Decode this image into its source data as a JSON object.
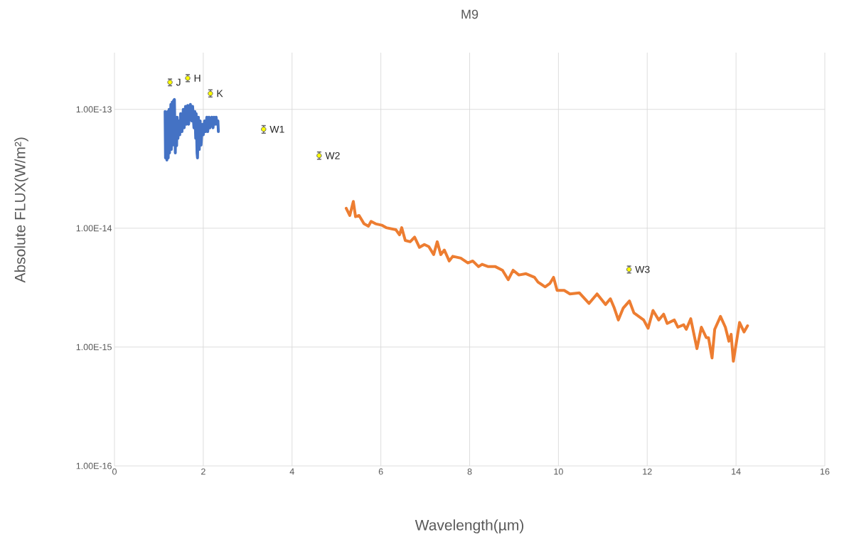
{
  "chart_data": {
    "type": "line",
    "title": "M9",
    "xlabel": "Wavelength(µm)",
    "ylabel": "Absolute FLUX(W/m²)",
    "log": "y",
    "grid": true,
    "xlim": [
      0,
      16
    ],
    "xticks": [
      0,
      2,
      4,
      6,
      8,
      10,
      12,
      14,
      16
    ],
    "ylim": [
      1e-16,
      3e-13
    ],
    "yticks": [
      {
        "value": 1e-16,
        "label": "1.00E-16"
      },
      {
        "value": 1e-15,
        "label": "1.00E-15"
      },
      {
        "value": 1e-14,
        "label": "1.00E-14"
      },
      {
        "value": 1e-13,
        "label": "1.00E-13"
      }
    ],
    "series": [
      {
        "color": "#4472c4",
        "x": [
          1.14,
          1.15,
          1.17,
          1.18,
          1.2,
          1.21,
          1.23,
          1.24,
          1.27,
          1.28,
          1.3,
          1.31,
          1.33,
          1.35,
          1.37,
          1.38,
          1.4,
          1.41,
          1.43,
          1.44,
          1.47,
          1.49,
          1.52,
          1.55,
          1.57,
          1.6,
          1.62,
          1.65,
          1.67,
          1.71,
          1.74,
          1.76,
          1.79,
          1.81,
          1.83,
          1.84,
          1.86,
          1.87,
          1.89,
          1.91,
          1.93,
          1.95,
          1.98,
          2.0,
          2.03,
          2.05,
          2.08,
          2.1,
          2.13,
          2.15,
          2.19,
          2.22,
          2.24,
          2.27,
          2.29,
          2.31,
          2.33,
          2.34
        ],
        "values": [
          9.6e-14,
          3.9e-14,
          9.2e-14,
          3.75e-14,
          9.6e-14,
          3.9e-14,
          1e-13,
          4.3e-14,
          1.1e-13,
          4.6e-14,
          1.15e-13,
          5e-14,
          1.18e-13,
          1.21e-13,
          4.3e-14,
          8e-14,
          4.95e-14,
          8.6e-14,
          5.7e-14,
          8e-14,
          6.1e-14,
          9.2e-14,
          6.5e-14,
          1e-13,
          7e-14,
          1.06e-13,
          7.5e-14,
          1.08e-13,
          7.5e-14,
          1.1e-13,
          8e-14,
          1.06e-13,
          7e-14,
          9.6e-14,
          5.7e-14,
          9.2e-14,
          4.3e-14,
          3.9e-14,
          8.6e-14,
          4.6e-14,
          8e-14,
          5e-14,
          7.5e-14,
          6.1e-14,
          8e-14,
          6.5e-14,
          8.6e-14,
          6.5e-14,
          8.6e-14,
          7e-14,
          8.6e-14,
          7e-14,
          8.6e-14,
          7.5e-14,
          8.6e-14,
          7.5e-14,
          8e-14,
          6.5e-14
        ]
      },
      {
        "color": "#ed7d31",
        "x": [
          5.22,
          5.3,
          5.38,
          5.43,
          5.51,
          5.62,
          5.72,
          5.78,
          5.88,
          6.02,
          6.12,
          6.34,
          6.42,
          6.47,
          6.55,
          6.66,
          6.76,
          6.87,
          6.98,
          7.08,
          7.19,
          7.27,
          7.35,
          7.43,
          7.54,
          7.62,
          7.8,
          7.96,
          8.07,
          8.2,
          8.28,
          8.42,
          8.58,
          8.74,
          8.87,
          8.98,
          9.11,
          9.27,
          9.46,
          9.54,
          9.7,
          9.81,
          9.89,
          9.97,
          10.13,
          10.26,
          10.47,
          10.69,
          10.87,
          11.06,
          11.17,
          11.25,
          11.35,
          11.46,
          11.6,
          11.7,
          11.92,
          12.02,
          12.13,
          12.26,
          12.37,
          12.45,
          12.61,
          12.69,
          12.82,
          12.88,
          12.98,
          13.12,
          13.22,
          13.33,
          13.38,
          13.46,
          13.52,
          13.65,
          13.76,
          13.84,
          13.89,
          13.94,
          14.08,
          14.18,
          14.26
        ],
        "values": [
          1.47e-14,
          1.28e-14,
          1.68e-14,
          1.25e-14,
          1.28e-14,
          1.09e-14,
          1.04e-14,
          1.14e-14,
          1.09e-14,
          1.06e-14,
          1.01e-14,
          9.7e-15,
          8.8e-15,
          1.01e-14,
          7.9e-15,
          7.7e-15,
          8.4e-15,
          6.9e-15,
          7.3e-15,
          7e-15,
          6e-15,
          7.7e-15,
          6e-15,
          6.55e-15,
          5.3e-15,
          5.8e-15,
          5.6e-15,
          5.1e-15,
          5.3e-15,
          4.75e-15,
          4.97e-15,
          4.75e-15,
          4.75e-15,
          4.43e-15,
          3.69e-15,
          4.43e-15,
          4.04e-15,
          4.14e-15,
          3.86e-15,
          3.52e-15,
          3.21e-15,
          3.44e-15,
          3.86e-15,
          3e-15,
          3e-15,
          2.8e-15,
          2.86e-15,
          2.33e-15,
          2.8e-15,
          2.28e-15,
          2.55e-15,
          2.17e-15,
          1.69e-15,
          2.13e-15,
          2.44e-15,
          1.94e-15,
          1.69e-15,
          1.44e-15,
          2.03e-15,
          1.69e-15,
          1.89e-15,
          1.58e-15,
          1.69e-15,
          1.47e-15,
          1.54e-15,
          1.41e-15,
          1.73e-15,
          9.7e-16,
          1.47e-15,
          1.2e-15,
          1.2e-15,
          8.1e-16,
          1.41e-15,
          1.81e-15,
          1.47e-15,
          1.12e-15,
          1.28e-15,
          7.6e-16,
          1.61e-15,
          1.34e-15,
          1.51e-15
        ]
      },
      {
        "type": "scatter",
        "color": "#ffff00",
        "x": [
          1.25,
          1.65,
          2.16,
          3.36,
          4.61,
          11.59
        ],
        "values": [
          1.69e-13,
          1.83e-13,
          1.36e-13,
          6.8e-14,
          4.08e-14,
          4.5e-15
        ],
        "errors": [
          [
            1.58e-13,
            1.8e-13
          ],
          [
            1.71e-13,
            1.96e-13
          ],
          [
            1.27e-13,
            1.46e-13
          ],
          [
            6.3e-14,
            7.3e-14
          ],
          [
            3.8e-14,
            4.38e-14
          ],
          [
            4.2e-15,
            4.8e-15
          ]
        ]
      }
    ],
    "annotations": [
      {
        "text": "J",
        "x": 1.25,
        "y": 1.69e-13
      },
      {
        "text": "H",
        "x": 1.65,
        "y": 1.83e-13
      },
      {
        "text": "K",
        "x": 2.16,
        "y": 1.36e-13
      },
      {
        "text": "W1",
        "x": 3.36,
        "y": 6.8e-14
      },
      {
        "text": "W2",
        "x": 4.61,
        "y": 4.08e-14
      },
      {
        "text": "W3",
        "x": 11.59,
        "y": 4.5e-15
      }
    ]
  }
}
